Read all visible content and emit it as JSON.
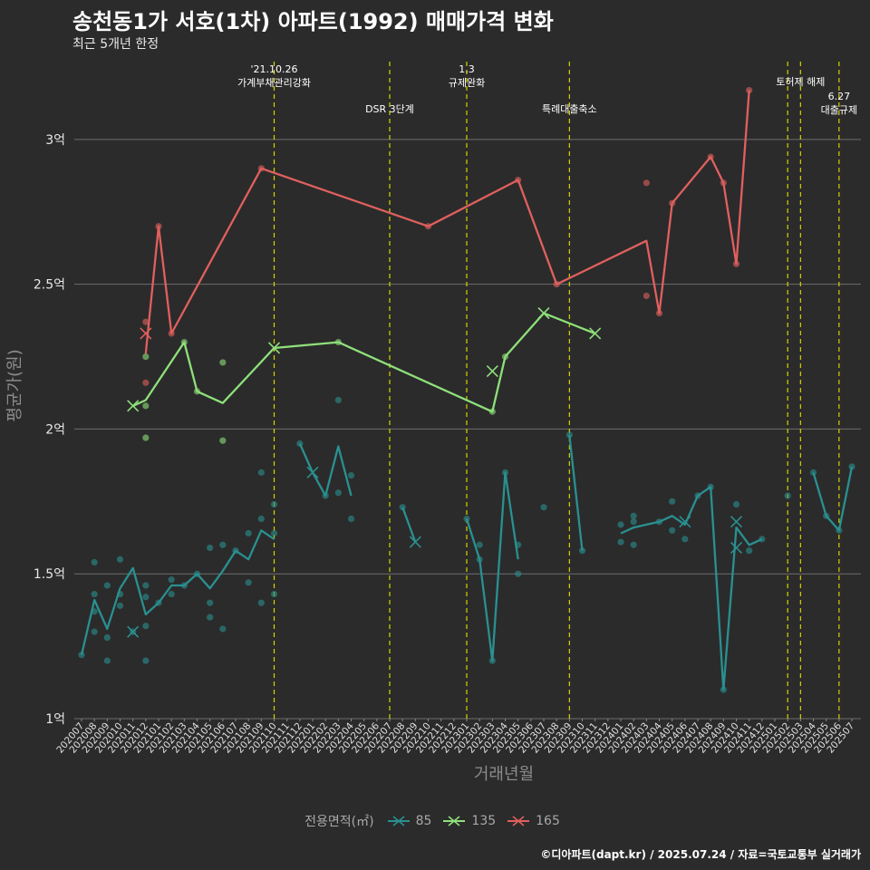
{
  "title": "송천동1가 서호(1차) 아파트(1992) 매매가격 변화",
  "subtitle": "최근 5개년 한정",
  "footer": "©디아파트(dapt.kr) / 2025.07.24 / 자료=국토교통부 실거래가",
  "legend": {
    "title": "전용면적(㎡)",
    "items": [
      {
        "name": "85",
        "color": "#2a9090"
      },
      {
        "name": "135",
        "color": "#8ee07a"
      },
      {
        "name": "165",
        "color": "#e0605e"
      }
    ]
  },
  "chart_data": {
    "type": "line",
    "xlabel": "거래년월",
    "ylabel": "평균가(원)",
    "ylim": [
      1.0,
      3.3
    ],
    "y_ticks": [
      {
        "v": 1,
        "label": "1억"
      },
      {
        "v": 1.5,
        "label": "1.5억"
      },
      {
        "v": 2,
        "label": "2억"
      },
      {
        "v": 2.5,
        "label": "2.5억"
      },
      {
        "v": 3,
        "label": "3억"
      }
    ],
    "grid": true,
    "legend_position": "bottom",
    "x_categories": [
      "202007",
      "202008",
      "202009",
      "202010",
      "202011",
      "202012",
      "202101",
      "202102",
      "202103",
      "202104",
      "202105",
      "202106",
      "202107",
      "202108",
      "202109",
      "202110",
      "202111",
      "202112",
      "202201",
      "202202",
      "202203",
      "202204",
      "202205",
      "202206",
      "202207",
      "202208",
      "202209",
      "202210",
      "202211",
      "202212",
      "202301",
      "202302",
      "202303",
      "202304",
      "202305",
      "202306",
      "202307",
      "202308",
      "202309",
      "202310",
      "202311",
      "202312",
      "202401",
      "202402",
      "202403",
      "202404",
      "202405",
      "202406",
      "202407",
      "202408",
      "202409",
      "202410",
      "202411",
      "202412",
      "202501",
      "202502",
      "202503",
      "202504",
      "202505",
      "202506",
      "202507"
    ],
    "policy_events": [
      {
        "x": "202110",
        "label": "'21.10.26\n가계부채관리강화",
        "level": 1
      },
      {
        "x": "202207",
        "label": "DSR 3단계",
        "level": 2
      },
      {
        "x": "202301",
        "label": "1.3\n규제완화",
        "level": 1
      },
      {
        "x": "202309",
        "label": "특례대출축소",
        "level": 2
      },
      {
        "x": "202502",
        "label": "",
        "level": 0
      },
      {
        "x": "202503",
        "label": "토허제 해제",
        "level": 1
      },
      {
        "x": "202506",
        "label": "6.27\n대출규제",
        "level": 2
      }
    ],
    "series": [
      {
        "name": "85",
        "color": "#2a9090",
        "line": [
          [
            [
              "202007",
              1.22
            ],
            [
              "202008",
              1.41
            ],
            [
              "202009",
              1.31
            ],
            [
              "202010",
              1.45
            ],
            [
              "202011",
              1.52
            ],
            [
              "202012",
              1.36
            ],
            [
              "202101",
              1.4
            ],
            [
              "202102",
              1.46
            ],
            [
              "202103",
              1.46
            ],
            [
              "202104",
              1.5
            ],
            [
              "202105",
              1.45
            ],
            [
              "202106",
              1.51
            ],
            [
              "202107",
              1.58
            ],
            [
              "202108",
              1.55
            ],
            [
              "202109",
              1.65
            ],
            [
              "202110",
              1.62
            ]
          ],
          [
            [
              "202112",
              1.95
            ],
            [
              "202201",
              1.85
            ],
            [
              "202202",
              1.77
            ],
            [
              "202203",
              1.94
            ],
            [
              "202204",
              1.77
            ]
          ],
          [
            [
              "202208",
              1.73
            ],
            [
              "202209",
              1.61
            ]
          ],
          [
            [
              "202301",
              1.69
            ],
            [
              "202302",
              1.55
            ],
            [
              "202303",
              1.2
            ],
            [
              "202304",
              1.85
            ],
            [
              "202305",
              1.55
            ]
          ],
          [
            [
              "202309",
              1.98
            ],
            [
              "202310",
              1.58
            ]
          ],
          [
            [
              "202401",
              1.64
            ],
            [
              "202402",
              1.66
            ],
            [
              "202403",
              1.67
            ],
            [
              "202404",
              1.68
            ],
            [
              "202405",
              1.7
            ],
            [
              "202406",
              1.67
            ],
            [
              "202407",
              1.77
            ],
            [
              "202408",
              1.8
            ],
            [
              "202409",
              1.1
            ],
            [
              "202410",
              1.66
            ],
            [
              "202411",
              1.6
            ],
            [
              "202412",
              1.62
            ]
          ],
          [
            [
              "202504",
              1.85
            ],
            [
              "202505",
              1.7
            ],
            [
              "202506",
              1.65
            ],
            [
              "202507",
              1.87
            ]
          ]
        ],
        "points": [
          [
            "202007",
            1.22
          ],
          [
            "202008",
            1.54
          ],
          [
            "202008",
            1.43
          ],
          [
            "202008",
            1.37
          ],
          [
            "202008",
            1.3
          ],
          [
            "202009",
            1.46
          ],
          [
            "202009",
            1.28
          ],
          [
            "202009",
            1.2
          ],
          [
            "202010",
            1.55
          ],
          [
            "202010",
            1.43
          ],
          [
            "202010",
            1.39
          ],
          [
            "202011",
            1.3
          ],
          [
            "202012",
            1.46
          ],
          [
            "202012",
            1.42
          ],
          [
            "202012",
            1.32
          ],
          [
            "202012",
            1.2
          ],
          [
            "202101",
            1.4
          ],
          [
            "202102",
            1.48
          ],
          [
            "202102",
            1.43
          ],
          [
            "202103",
            1.46
          ],
          [
            "202104",
            1.5
          ],
          [
            "202105",
            1.59
          ],
          [
            "202105",
            1.4
          ],
          [
            "202105",
            1.35
          ],
          [
            "202106",
            1.6
          ],
          [
            "202106",
            1.31
          ],
          [
            "202107",
            1.58
          ],
          [
            "202108",
            1.64
          ],
          [
            "202108",
            1.47
          ],
          [
            "202109",
            1.85
          ],
          [
            "202109",
            1.69
          ],
          [
            "202109",
            1.4
          ],
          [
            "202110",
            1.74
          ],
          [
            "202110",
            1.64
          ],
          [
            "202110",
            1.43
          ],
          [
            "202112",
            1.95
          ],
          [
            "202202",
            1.77
          ],
          [
            "202203",
            2.1
          ],
          [
            "202203",
            1.78
          ],
          [
            "202204",
            1.84
          ],
          [
            "202204",
            1.69
          ],
          [
            "202208",
            1.73
          ],
          [
            "202301",
            1.69
          ],
          [
            "202302",
            1.6
          ],
          [
            "202302",
            1.55
          ],
          [
            "202303",
            1.2
          ],
          [
            "202304",
            1.85
          ],
          [
            "202305",
            1.6
          ],
          [
            "202305",
            1.5
          ],
          [
            "202307",
            1.73
          ],
          [
            "202309",
            1.98
          ],
          [
            "202310",
            1.58
          ],
          [
            "202401",
            1.67
          ],
          [
            "202401",
            1.61
          ],
          [
            "202402",
            1.7
          ],
          [
            "202402",
            1.68
          ],
          [
            "202402",
            1.6
          ],
          [
            "202404",
            1.68
          ],
          [
            "202405",
            1.75
          ],
          [
            "202405",
            1.65
          ],
          [
            "202406",
            1.62
          ],
          [
            "202407",
            1.77
          ],
          [
            "202408",
            1.8
          ],
          [
            "202409",
            1.1
          ],
          [
            "202410",
            1.74
          ],
          [
            "202411",
            1.58
          ],
          [
            "202412",
            1.62
          ],
          [
            "202502",
            1.77
          ],
          [
            "202504",
            1.85
          ],
          [
            "202505",
            1.7
          ],
          [
            "202506",
            1.65
          ],
          [
            "202507",
            1.87
          ]
        ],
        "x_marks": [
          [
            "202011",
            1.3
          ],
          [
            "202201",
            1.85
          ],
          [
            "202209",
            1.61
          ],
          [
            "202406",
            1.68
          ],
          [
            "202410",
            1.68
          ],
          [
            "202410",
            1.59
          ]
        ]
      },
      {
        "name": "135",
        "color": "#8ee07a",
        "line": [
          [
            [
              "202011",
              2.08
            ],
            [
              "202012",
              2.1
            ],
            [
              "202103",
              2.3
            ],
            [
              "202104",
              2.13
            ],
            [
              "202106",
              2.09
            ],
            [
              "202110",
              2.28
            ],
            [
              "202203",
              2.3
            ],
            [
              "202303",
              2.06
            ],
            [
              "202304",
              2.25
            ],
            [
              "202307",
              2.4
            ],
            [
              "202311",
              2.33
            ]
          ]
        ],
        "points": [
          [
            "202012",
            2.25
          ],
          [
            "202012",
            2.08
          ],
          [
            "202012",
            1.97
          ],
          [
            "202103",
            2.3
          ],
          [
            "202104",
            2.13
          ],
          [
            "202106",
            2.23
          ],
          [
            "202106",
            1.96
          ],
          [
            "202203",
            2.3
          ],
          [
            "202303",
            2.06
          ],
          [
            "202304",
            2.25
          ]
        ],
        "x_marks": [
          [
            "202011",
            2.08
          ],
          [
            "202110",
            2.28
          ],
          [
            "202303",
            2.2
          ],
          [
            "202307",
            2.4
          ],
          [
            "202311",
            2.33
          ]
        ]
      },
      {
        "name": "165",
        "color": "#e0605e",
        "line": [
          [
            [
              "202012",
              2.26
            ],
            [
              "202101",
              2.7
            ],
            [
              "202102",
              2.33
            ],
            [
              "202109",
              2.9
            ],
            [
              "202210",
              2.7
            ],
            [
              "202305",
              2.86
            ],
            [
              "202308",
              2.5
            ],
            [
              "202403",
              2.65
            ],
            [
              "202404",
              2.4
            ],
            [
              "202405",
              2.78
            ],
            [
              "202408",
              2.94
            ],
            [
              "202409",
              2.85
            ],
            [
              "202410",
              2.57
            ],
            [
              "202411",
              3.17
            ]
          ]
        ],
        "points": [
          [
            "202012",
            2.37
          ],
          [
            "202012",
            2.16
          ],
          [
            "202101",
            2.7
          ],
          [
            "202102",
            2.33
          ],
          [
            "202109",
            2.9
          ],
          [
            "202210",
            2.7
          ],
          [
            "202305",
            2.86
          ],
          [
            "202308",
            2.5
          ],
          [
            "202403",
            2.85
          ],
          [
            "202403",
            2.46
          ],
          [
            "202404",
            2.4
          ],
          [
            "202405",
            2.78
          ],
          [
            "202408",
            2.94
          ],
          [
            "202409",
            2.85
          ],
          [
            "202410",
            2.57
          ],
          [
            "202411",
            3.17
          ]
        ],
        "x_marks": [
          [
            "202012",
            2.33
          ]
        ]
      }
    ]
  }
}
